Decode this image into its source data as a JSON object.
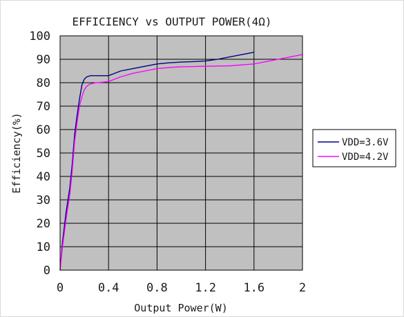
{
  "chart_data": {
    "type": "line",
    "title": "EFFICIENCY vs OUTPUT POWER(4Ω)",
    "xlabel": "Output Power(W)",
    "ylabel": "Efficiency(%)",
    "xlim": [
      0,
      2
    ],
    "ylim": [
      0,
      100
    ],
    "x_ticks": [
      "0",
      "0.4",
      "0.8",
      "1.2",
      "1.6",
      "2"
    ],
    "x_tick_values": [
      0,
      0.4,
      0.8,
      1.2,
      1.6,
      2
    ],
    "y_ticks": [
      "0",
      "10",
      "20",
      "30",
      "40",
      "50",
      "60",
      "70",
      "80",
      "90",
      "100"
    ],
    "y_tick_values": [
      0,
      10,
      20,
      30,
      40,
      50,
      60,
      70,
      80,
      90,
      100
    ],
    "grid": true,
    "legend_position": "right",
    "plot_background": "#c0c0c0",
    "series": [
      {
        "name": "VDD=3.6V",
        "color": "#000080",
        "x": [
          0,
          0.02,
          0.05,
          0.08,
          0.1,
          0.12,
          0.14,
          0.16,
          0.18,
          0.2,
          0.22,
          0.25,
          0.3,
          0.35,
          0.4,
          0.45,
          0.5,
          0.6,
          0.7,
          0.8,
          0.9,
          1.0,
          1.1,
          1.2,
          1.3,
          1.4,
          1.5,
          1.6
        ],
        "y": [
          0,
          12,
          25,
          35,
          45,
          58,
          66,
          73,
          79,
          81.5,
          82.5,
          83,
          83,
          83,
          83,
          84,
          85,
          86,
          87,
          88,
          88.5,
          88.8,
          89,
          89.3,
          90,
          91,
          92,
          93
        ]
      },
      {
        "name": "VDD=4.2V",
        "color": "#ff00ff",
        "x": [
          0,
          0.02,
          0.05,
          0.08,
          0.1,
          0.12,
          0.14,
          0.16,
          0.18,
          0.2,
          0.22,
          0.25,
          0.3,
          0.35,
          0.4,
          0.45,
          0.5,
          0.6,
          0.7,
          0.8,
          0.9,
          1.0,
          1.2,
          1.4,
          1.6,
          1.7,
          1.8,
          1.9,
          2.0
        ],
        "y": [
          0,
          10,
          22,
          32,
          42,
          55,
          63,
          70,
          74,
          77,
          78.5,
          79.5,
          80,
          80.2,
          80.5,
          81.5,
          82.5,
          84,
          85,
          86,
          86.5,
          86.8,
          87,
          87.2,
          88,
          89,
          90,
          91,
          92
        ]
      }
    ]
  }
}
